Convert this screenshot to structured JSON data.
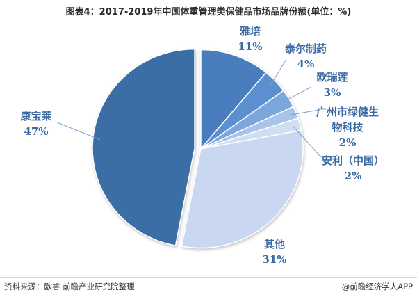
{
  "title": "图表4：2017-2019年中国体重管理类保健品市场品牌份额(单位：%)",
  "chart_data": {
    "type": "pie",
    "slices": [
      {
        "label": "雅培",
        "value": 11,
        "value_label": "11%",
        "color": "#4a7dbd"
      },
      {
        "label": "泰尔制药",
        "value": 4,
        "value_label": "4%",
        "color": "#5b8fd0"
      },
      {
        "label": "欧瑞莲",
        "value": 3,
        "value_label": "3%",
        "color": "#7ba7dc"
      },
      {
        "label": "广州市绿健生物科技",
        "value": 2,
        "value_label": "2%",
        "color": "#a9c4e8"
      },
      {
        "label": "安利（中国）",
        "value": 2,
        "value_label": "2%",
        "color": "#d0def2"
      },
      {
        "label": "其他",
        "value": 31,
        "value_label": "31%",
        "color": "#c9d8f0"
      },
      {
        "label": "康宝莱",
        "value": 47,
        "value_label": "47%",
        "color": "#3a6ea5"
      }
    ],
    "label_color": "#3b6aa3"
  },
  "footer": {
    "source": "资料来源：欧睿 前瞻产业研究院整理",
    "brand": "@前瞻经济学人APP"
  }
}
